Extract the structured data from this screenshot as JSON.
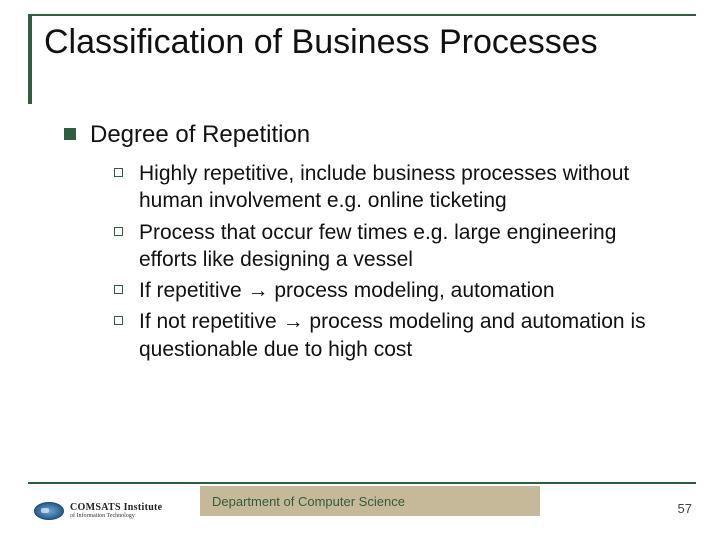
{
  "title": "Classification of Business Processes",
  "level1": {
    "heading": "Degree of Repetition",
    "items": [
      "Highly repetitive, include business processes without human involvement e.g. online ticketing",
      "Process that occur few times e.g. large engineering efforts like designing a vessel",
      "If repetitive → process modeling, automation",
      "If not repetitive → process modeling and automation is questionable due to high cost"
    ]
  },
  "footer": {
    "department": "Department of Computer Science",
    "page": "57"
  },
  "logo": {
    "line1": "COMSATS Institute",
    "line2": "of Information Technology"
  },
  "colors": {
    "accent": "#2f5d3f",
    "band": "#c6b99a",
    "text": "#111111",
    "background": "#ffffff"
  }
}
